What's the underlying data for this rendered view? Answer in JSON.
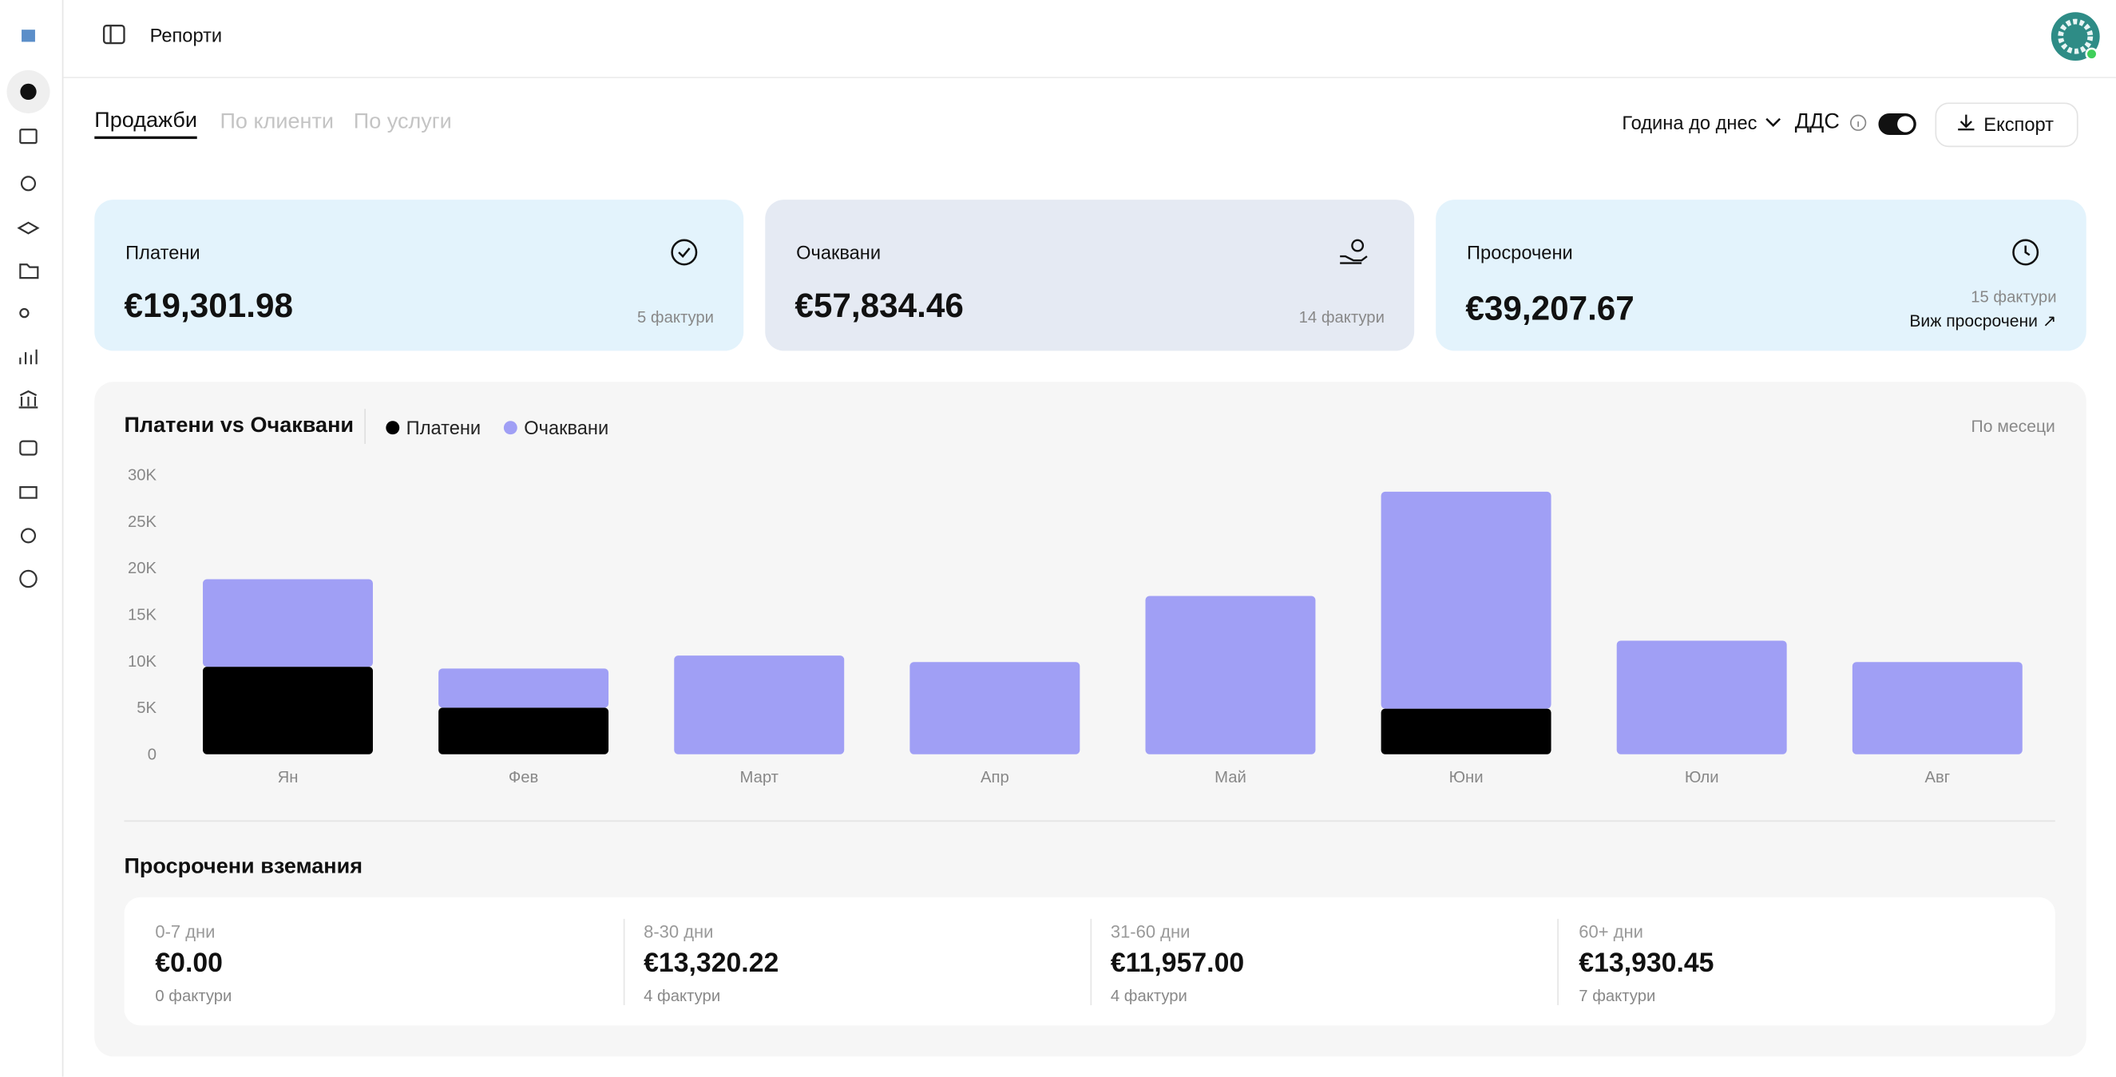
{
  "header": {
    "title": "Репорти"
  },
  "tabs": [
    "Продажби",
    "По клиенти",
    "По услуги"
  ],
  "controls": {
    "period": "Година до днес",
    "vat": "ДДС",
    "export": "Експорт"
  },
  "cards": [
    {
      "title": "Платени",
      "amount": "€19,301.98",
      "invoices": "5 фактури"
    },
    {
      "title": "Очаквани",
      "amount": "€57,834.46",
      "invoices": "14 фактури"
    },
    {
      "title": "Просрочени",
      "amount": "€39,207.67",
      "invoices": "15 фактури",
      "link": "Виж просрочени ↗"
    }
  ],
  "chart_data": {
    "type": "bar",
    "stacked": true,
    "title": "Платени vs Очаквани",
    "grouping": "По месеци",
    "categories": [
      "Ян",
      "Фев",
      "Март",
      "Апр",
      "Май",
      "Юни",
      "Юли",
      "Авг"
    ],
    "series": [
      {
        "name": "Платени",
        "color": "#000000",
        "values": [
          9400,
          5000,
          0,
          0,
          0,
          4900,
          0,
          0
        ]
      },
      {
        "name": "Очаквани",
        "color": "#a09ff5",
        "values": [
          9400,
          4200,
          10600,
          9900,
          17000,
          23300,
          12200,
          9900
        ]
      }
    ],
    "ylim": [
      0,
      30000
    ],
    "yticks": [
      {
        "value": 0,
        "label": "0"
      },
      {
        "value": 5000,
        "label": "5K"
      },
      {
        "value": 10000,
        "label": "10K"
      },
      {
        "value": 15000,
        "label": "15K"
      },
      {
        "value": 20000,
        "label": "20K"
      },
      {
        "value": 25000,
        "label": "25K"
      },
      {
        "value": 30000,
        "label": "30K"
      }
    ],
    "grid": false
  },
  "overdue": {
    "title": "Просрочени вземания",
    "buckets": [
      {
        "range": "0-7 дни",
        "amount": "€0.00",
        "invoices": "0 фактури"
      },
      {
        "range": "8-30 дни",
        "amount": "€13,320.22",
        "invoices": "4 фактури"
      },
      {
        "range": "31-60 дни",
        "amount": "€11,957.00",
        "invoices": "4 фактури"
      },
      {
        "range": "60+ дни",
        "amount": "€13,930.45",
        "invoices": "7 фактури"
      }
    ]
  }
}
